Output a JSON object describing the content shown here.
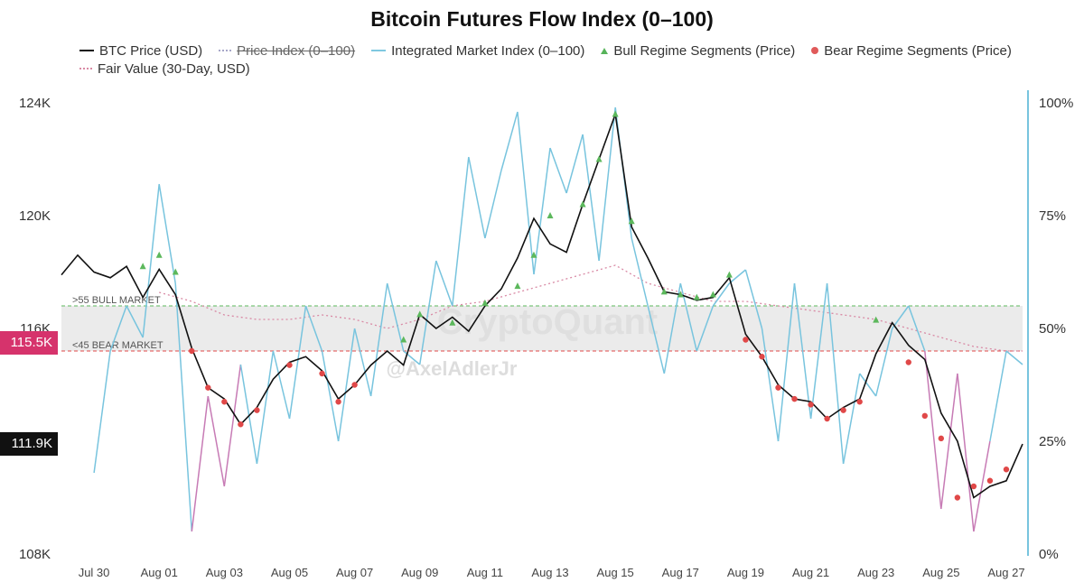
{
  "title": "Bitcoin Futures Flow Index (0–100)",
  "legend": {
    "btc_price": "BTC Price (USD)",
    "price_index": "Price Index (0–100)",
    "integrated_index": "Integrated Market Index (0–100)",
    "bull_segments": "Bull Regime Segments (Price)",
    "bear_segments": "Bear Regime Segments (Price)",
    "fair_value": "Fair Value (30-Day, USD)"
  },
  "badges": {
    "upper": "115.5K",
    "lower": "111.9K"
  },
  "bands": {
    "bull_label": ">55 BULL MARKET",
    "bear_label": "<45 BEAR MARKET"
  },
  "watermarks": {
    "brand": "CryptoQuant",
    "author": "@AxelAdlerJr"
  },
  "colors": {
    "price": "#111111",
    "integrated": "#78c4de",
    "integrated_low": "#c77bb5",
    "fair_value": "#d98aa5",
    "bull": "#5cb85c",
    "bear": "#e04848",
    "badge_upper": "#d6336c",
    "badge_lower": "#111111",
    "band_fill": "#ebebeb"
  },
  "chart_data": {
    "type": "line",
    "title": "Bitcoin Futures Flow Index (0–100)",
    "x_ticks": [
      "Jul 30",
      "Aug 01",
      "Aug 03",
      "Aug 05",
      "Aug 07",
      "Aug 09",
      "Aug 11",
      "Aug 13",
      "Aug 15",
      "Aug 17",
      "Aug 19",
      "Aug 21",
      "Aug 23",
      "Aug 25",
      "Aug 27"
    ],
    "y_left_ticks": [
      "124K",
      "120K",
      "116K",
      "108K"
    ],
    "y_right_ticks": [
      "100%",
      "75%",
      "50%",
      "25%",
      "0%"
    ],
    "y_left_range": [
      108,
      124
    ],
    "y_right_range": [
      0,
      100
    ],
    "x_range": [
      0,
      29.5
    ],
    "bull_threshold": 55,
    "bear_threshold": 45,
    "series": [
      {
        "name": "BTC Price (USD)",
        "unit": "K USD",
        "x": [
          0,
          0.5,
          1,
          1.5,
          2,
          2.5,
          3,
          3.5,
          4,
          4.5,
          5,
          5.5,
          6,
          6.5,
          7,
          7.5,
          8,
          8.5,
          9,
          9.5,
          10,
          10.5,
          11,
          11.5,
          12,
          12.5,
          13,
          13.5,
          14,
          14.5,
          15,
          15.5,
          16,
          16.5,
          17,
          17.5,
          18,
          18.5,
          19,
          19.5,
          20,
          20.5,
          21,
          21.5,
          22,
          22.5,
          23,
          23.5,
          24,
          24.5,
          25,
          25.5,
          26,
          26.5,
          27,
          27.5,
          28,
          28.5,
          29,
          29.5
        ],
        "y": [
          117.9,
          118.6,
          118.0,
          117.8,
          118.2,
          117.1,
          118.1,
          117.2,
          115.3,
          113.9,
          113.5,
          112.6,
          113.2,
          114.2,
          114.8,
          115.0,
          114.5,
          113.5,
          114.0,
          114.7,
          115.2,
          114.7,
          116.5,
          116.0,
          116.4,
          115.9,
          116.8,
          117.4,
          118.5,
          119.9,
          119.0,
          118.7,
          120.4,
          122.0,
          123.6,
          119.6,
          118.5,
          117.3,
          117.2,
          117.0,
          117.1,
          117.8,
          115.8,
          115.0,
          114.0,
          113.5,
          113.4,
          112.8,
          113.2,
          113.5,
          115.1,
          116.2,
          115.4,
          114.9,
          113.0,
          112.0,
          110.0,
          110.4,
          110.6,
          111.9
        ]
      },
      {
        "name": "Integrated Market Index (0–100)",
        "unit": "%",
        "x": [
          1,
          1.5,
          2,
          2.5,
          3,
          3.5,
          4,
          4.5,
          5,
          5.5,
          6,
          6.5,
          7,
          7.5,
          8,
          8.5,
          9,
          9.5,
          10,
          10.5,
          11,
          11.5,
          12,
          12.5,
          13,
          13.5,
          14,
          14.5,
          15,
          15.5,
          16,
          16.5,
          17,
          17.5,
          18,
          18.5,
          19,
          19.5,
          20,
          20.5,
          21,
          21.5,
          22,
          22.5,
          23,
          23.5,
          24,
          24.5,
          25,
          25.5,
          26,
          26.5,
          27,
          27.5,
          28,
          28.5,
          29,
          29.5
        ],
        "y": [
          18,
          45,
          55,
          48,
          82,
          60,
          5,
          35,
          15,
          42,
          20,
          45,
          30,
          55,
          45,
          25,
          50,
          35,
          60,
          45,
          42,
          65,
          55,
          88,
          70,
          85,
          98,
          62,
          90,
          80,
          93,
          65,
          99,
          70,
          55,
          40,
          60,
          45,
          55,
          60,
          63,
          50,
          25,
          60,
          30,
          60,
          20,
          40,
          35,
          50,
          55,
          45,
          10,
          40,
          5,
          25,
          45,
          42
        ]
      },
      {
        "name": "Fair Value (30-Day, USD)",
        "unit": "%",
        "x": [
          3,
          4,
          5,
          6,
          7,
          8,
          9,
          10,
          11,
          12,
          13,
          14,
          15,
          16,
          17,
          18,
          19,
          20,
          21,
          22,
          23,
          24,
          25,
          26,
          27,
          28,
          29,
          29.5
        ],
        "y": [
          58,
          56,
          53,
          52,
          52,
          53,
          52,
          50,
          52,
          55,
          56,
          58,
          60,
          62,
          64,
          60,
          58,
          56,
          56,
          55,
          54,
          53,
          52,
          50,
          48,
          46,
          45,
          45
        ]
      }
    ],
    "bull_segments_price": {
      "name": "Bull Regime Segments (Price)",
      "x": [
        2.5,
        3,
        3.5,
        10.5,
        11,
        12,
        13,
        14,
        14.5,
        15,
        16,
        16.5,
        17,
        17.5,
        18.5,
        19,
        19.5,
        20,
        20.5,
        25
      ],
      "y": [
        118.2,
        118.6,
        118.0,
        115.6,
        116.5,
        116.2,
        116.9,
        117.5,
        118.6,
        120.0,
        120.4,
        122.0,
        123.6,
        119.8,
        117.3,
        117.2,
        117.1,
        117.2,
        117.9,
        116.3
      ]
    },
    "bear_segments_price": {
      "name": "Bear Regime Segments (Price)",
      "x": [
        4,
        4.5,
        5,
        5.5,
        6,
        7,
        8,
        8.5,
        9,
        21,
        21.5,
        22,
        22.5,
        23,
        23.5,
        24,
        24.5,
        26,
        26.5,
        27,
        27.5,
        28,
        28.5,
        29
      ],
      "y": [
        115.2,
        113.9,
        113.4,
        112.6,
        113.1,
        114.7,
        114.4,
        113.4,
        114.0,
        115.6,
        115.0,
        113.9,
        113.5,
        113.3,
        112.8,
        113.1,
        113.4,
        114.8,
        112.9,
        112.1,
        110.0,
        110.4,
        110.6,
        111.0
      ]
    }
  }
}
